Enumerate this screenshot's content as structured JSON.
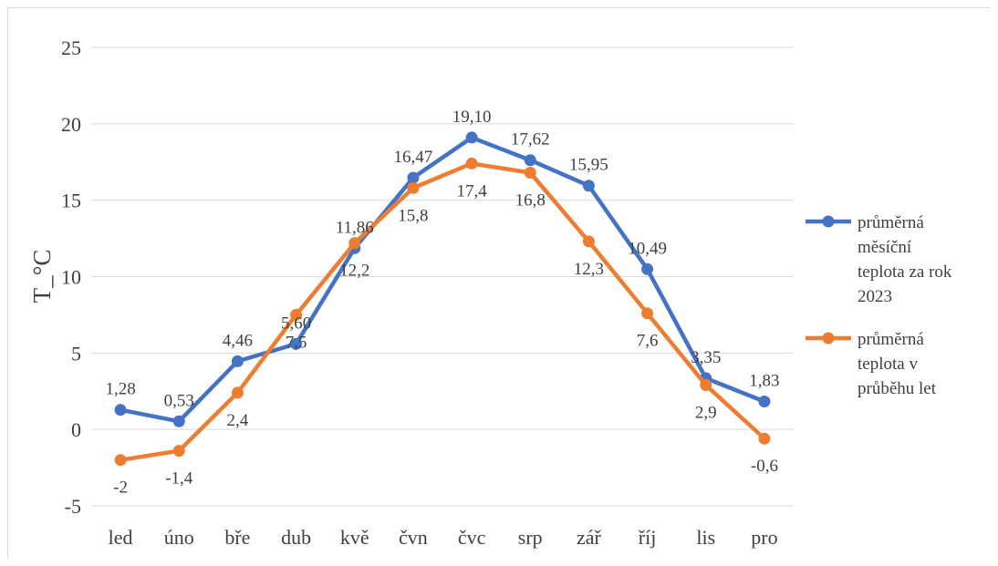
{
  "chart_data": {
    "type": "line",
    "categories": [
      "led",
      "úno",
      "bře",
      "dub",
      "kvě",
      "čvn",
      "čvc",
      "srp",
      "zář",
      "říj",
      "lis",
      "pro"
    ],
    "ylabel": "T_°C",
    "xlabel": "",
    "ylim": [
      -5,
      25
    ],
    "yticks": [
      "-5",
      "0",
      "5",
      "10",
      "15",
      "20",
      "25"
    ],
    "grid": true,
    "legend_position": "right",
    "series": [
      {
        "name": "průměrná měsíční teplota za rok 2023",
        "color": "#4472C4",
        "values": [
          1.28,
          0.53,
          4.46,
          5.6,
          11.86,
          16.47,
          19.1,
          17.62,
          15.95,
          10.49,
          3.35,
          1.83
        ],
        "labels": [
          "1,28",
          "0,53",
          "4,46",
          "5,60",
          "11,86",
          "16,47",
          "19,10",
          "17,62",
          "15,95",
          "10,49",
          "3,35",
          "1,83"
        ]
      },
      {
        "name": "průměrná teplota v průběhu let",
        "color": "#ED7D31",
        "values": [
          -2,
          -1.4,
          2.4,
          7.5,
          12.2,
          15.8,
          17.4,
          16.8,
          12.3,
          7.6,
          2.9,
          -0.6
        ],
        "labels": [
          "-2",
          "-1,4",
          "2,4",
          "7,5",
          "12,2",
          "15,8",
          "17,4",
          "16,8",
          "12,3",
          "7,6",
          "2,9",
          "-0,6"
        ]
      }
    ],
    "legend": [
      [
        "průměrná",
        "měsíční",
        "teplota za rok",
        "2023"
      ],
      [
        "průměrná",
        "teplota v",
        "průběhu let"
      ]
    ]
  }
}
